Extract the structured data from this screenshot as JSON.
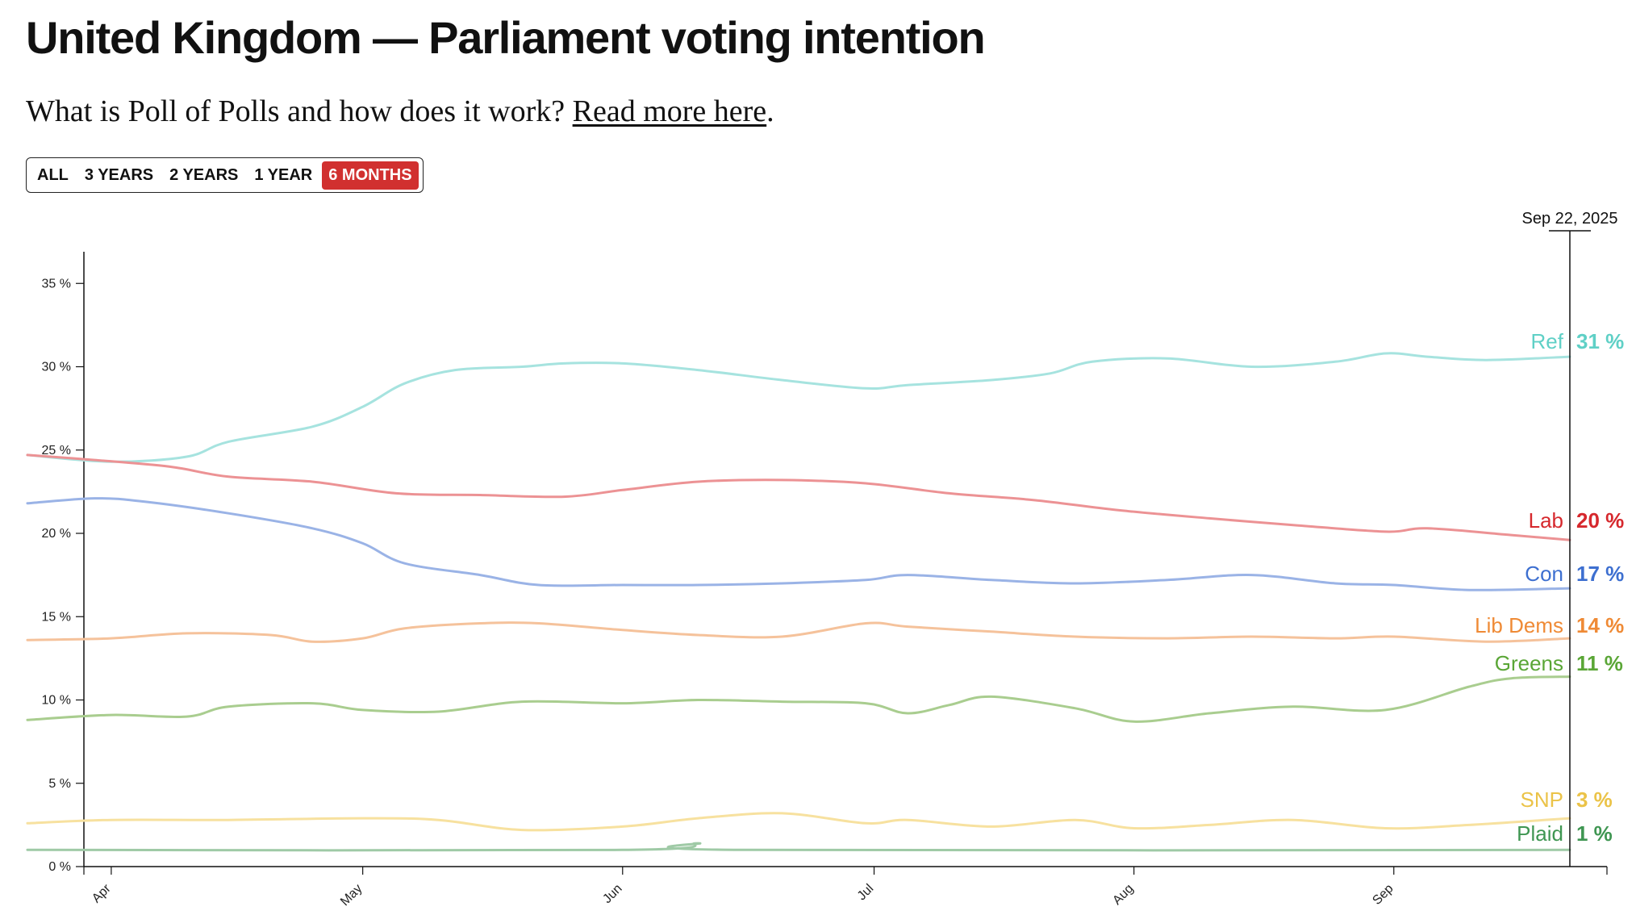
{
  "header": {
    "title": "United Kingdom — Parliament voting intention",
    "subtitle_prefix": "What is Poll of Polls and how does it work? ",
    "subtitle_link": "Read more here",
    "subtitle_suffix": "."
  },
  "range_buttons": [
    {
      "label": "ALL",
      "active": false
    },
    {
      "label": "3 YEARS",
      "active": false
    },
    {
      "label": "2 YEARS",
      "active": false
    },
    {
      "label": "1 YEAR",
      "active": false
    },
    {
      "label": "6 MONTHS",
      "active": true
    }
  ],
  "chart_data": {
    "type": "line",
    "date_label": "Sep 22, 2025",
    "x_start": "2025-03-22",
    "x_end": "2025-09-22",
    "month_ticks": [
      {
        "label": "Apr",
        "date": "2025-04-01"
      },
      {
        "label": "May",
        "date": "2025-05-01"
      },
      {
        "label": "Jun",
        "date": "2025-06-01"
      },
      {
        "label": "Jul",
        "date": "2025-07-01"
      },
      {
        "label": "Aug",
        "date": "2025-08-01"
      },
      {
        "label": "Sep",
        "date": "2025-09-01"
      }
    ],
    "y_ticks": [
      "0 %",
      "5 %",
      "10 %",
      "15 %",
      "20 %",
      "25 %",
      "30 %",
      "35 %"
    ],
    "ylim": [
      0,
      37
    ],
    "series": [
      {
        "name": "Ref",
        "value_label": "31 %",
        "color": "#a6e3df",
        "label_color": "#5fd0c6",
        "points": [
          [
            "2025-03-22",
            24.7
          ],
          [
            "2025-04-01",
            24.3
          ],
          [
            "2025-04-10",
            24.6
          ],
          [
            "2025-04-15",
            25.5
          ],
          [
            "2025-04-25",
            26.4
          ],
          [
            "2025-05-01",
            27.6
          ],
          [
            "2025-05-06",
            29.0
          ],
          [
            "2025-05-12",
            29.8
          ],
          [
            "2025-05-20",
            30.0
          ],
          [
            "2025-05-25",
            30.2
          ],
          [
            "2025-06-01",
            30.2
          ],
          [
            "2025-06-10",
            29.8
          ],
          [
            "2025-06-20",
            29.2
          ],
          [
            "2025-06-30",
            28.7
          ],
          [
            "2025-07-05",
            28.9
          ],
          [
            "2025-07-15",
            29.2
          ],
          [
            "2025-07-22",
            29.6
          ],
          [
            "2025-07-27",
            30.3
          ],
          [
            "2025-08-05",
            30.5
          ],
          [
            "2025-08-15",
            30.0
          ],
          [
            "2025-08-25",
            30.3
          ],
          [
            "2025-08-31",
            30.8
          ],
          [
            "2025-09-05",
            30.6
          ],
          [
            "2025-09-12",
            30.4
          ],
          [
            "2025-09-22",
            30.6
          ]
        ]
      },
      {
        "name": "Lab",
        "value_label": "20 %",
        "color": "#ec9294",
        "label_color": "#d6282d",
        "points": [
          [
            "2025-03-22",
            24.7
          ],
          [
            "2025-03-30",
            24.4
          ],
          [
            "2025-04-08",
            24.0
          ],
          [
            "2025-04-15",
            23.4
          ],
          [
            "2025-04-25",
            23.1
          ],
          [
            "2025-05-05",
            22.4
          ],
          [
            "2025-05-15",
            22.3
          ],
          [
            "2025-05-25",
            22.2
          ],
          [
            "2025-06-01",
            22.6
          ],
          [
            "2025-06-10",
            23.1
          ],
          [
            "2025-06-20",
            23.2
          ],
          [
            "2025-06-30",
            23.0
          ],
          [
            "2025-07-10",
            22.4
          ],
          [
            "2025-07-20",
            22.0
          ],
          [
            "2025-07-30",
            21.4
          ],
          [
            "2025-08-10",
            20.9
          ],
          [
            "2025-08-20",
            20.5
          ],
          [
            "2025-08-31",
            20.1
          ],
          [
            "2025-09-05",
            20.3
          ],
          [
            "2025-09-15",
            19.9
          ],
          [
            "2025-09-22",
            19.6
          ]
        ]
      },
      {
        "name": "Con",
        "value_label": "17 %",
        "color": "#9ab3e6",
        "label_color": "#3d6fd0",
        "points": [
          [
            "2025-03-22",
            21.8
          ],
          [
            "2025-03-30",
            22.1
          ],
          [
            "2025-04-05",
            21.9
          ],
          [
            "2025-04-15",
            21.2
          ],
          [
            "2025-04-25",
            20.3
          ],
          [
            "2025-05-01",
            19.4
          ],
          [
            "2025-05-06",
            18.2
          ],
          [
            "2025-05-15",
            17.5
          ],
          [
            "2025-05-22",
            16.9
          ],
          [
            "2025-06-01",
            16.9
          ],
          [
            "2025-06-10",
            16.9
          ],
          [
            "2025-06-20",
            17.0
          ],
          [
            "2025-06-30",
            17.2
          ],
          [
            "2025-07-05",
            17.5
          ],
          [
            "2025-07-15",
            17.2
          ],
          [
            "2025-07-25",
            17.0
          ],
          [
            "2025-08-05",
            17.2
          ],
          [
            "2025-08-15",
            17.5
          ],
          [
            "2025-08-25",
            17.0
          ],
          [
            "2025-09-01",
            16.9
          ],
          [
            "2025-09-10",
            16.6
          ],
          [
            "2025-09-22",
            16.7
          ]
        ]
      },
      {
        "name": "Lib Dems",
        "value_label": "14 %",
        "color": "#f5c29b",
        "label_color": "#ef8a35",
        "points": [
          [
            "2025-03-22",
            13.6
          ],
          [
            "2025-04-01",
            13.7
          ],
          [
            "2025-04-10",
            14.0
          ],
          [
            "2025-04-20",
            13.9
          ],
          [
            "2025-04-25",
            13.5
          ],
          [
            "2025-05-01",
            13.7
          ],
          [
            "2025-05-06",
            14.3
          ],
          [
            "2025-05-15",
            14.6
          ],
          [
            "2025-05-22",
            14.6
          ],
          [
            "2025-06-01",
            14.2
          ],
          [
            "2025-06-10",
            13.9
          ],
          [
            "2025-06-20",
            13.8
          ],
          [
            "2025-06-30",
            14.6
          ],
          [
            "2025-07-05",
            14.4
          ],
          [
            "2025-07-15",
            14.1
          ],
          [
            "2025-07-25",
            13.8
          ],
          [
            "2025-08-05",
            13.7
          ],
          [
            "2025-08-15",
            13.8
          ],
          [
            "2025-08-25",
            13.7
          ],
          [
            "2025-09-01",
            13.8
          ],
          [
            "2025-09-12",
            13.5
          ],
          [
            "2025-09-22",
            13.7
          ]
        ]
      },
      {
        "name": "Greens",
        "value_label": "11 %",
        "color": "#a9cd8f",
        "label_color": "#5aa636",
        "points": [
          [
            "2025-03-22",
            8.8
          ],
          [
            "2025-04-01",
            9.1
          ],
          [
            "2025-04-10",
            9.0
          ],
          [
            "2025-04-15",
            9.6
          ],
          [
            "2025-04-25",
            9.8
          ],
          [
            "2025-05-01",
            9.4
          ],
          [
            "2025-05-10",
            9.3
          ],
          [
            "2025-05-20",
            9.9
          ],
          [
            "2025-06-01",
            9.8
          ],
          [
            "2025-06-10",
            10.0
          ],
          [
            "2025-06-20",
            9.9
          ],
          [
            "2025-06-30",
            9.8
          ],
          [
            "2025-07-05",
            9.2
          ],
          [
            "2025-07-10",
            9.7
          ],
          [
            "2025-07-15",
            10.2
          ],
          [
            "2025-07-25",
            9.5
          ],
          [
            "2025-08-01",
            8.7
          ],
          [
            "2025-08-10",
            9.2
          ],
          [
            "2025-08-20",
            9.6
          ],
          [
            "2025-08-31",
            9.4
          ],
          [
            "2025-09-10",
            10.8
          ],
          [
            "2025-09-15",
            11.3
          ],
          [
            "2025-09-22",
            11.4
          ]
        ]
      },
      {
        "name": "SNP",
        "value_label": "3 %",
        "color": "#f7e19f",
        "label_color": "#ebc348",
        "points": [
          [
            "2025-03-22",
            2.6
          ],
          [
            "2025-04-01",
            2.8
          ],
          [
            "2025-04-15",
            2.8
          ],
          [
            "2025-05-01",
            2.9
          ],
          [
            "2025-05-10",
            2.8
          ],
          [
            "2025-05-20",
            2.2
          ],
          [
            "2025-06-01",
            2.4
          ],
          [
            "2025-06-10",
            2.9
          ],
          [
            "2025-06-20",
            3.2
          ],
          [
            "2025-06-30",
            2.6
          ],
          [
            "2025-07-05",
            2.8
          ],
          [
            "2025-07-15",
            2.4
          ],
          [
            "2025-07-25",
            2.8
          ],
          [
            "2025-08-01",
            2.3
          ],
          [
            "2025-08-10",
            2.5
          ],
          [
            "2025-08-20",
            2.8
          ],
          [
            "2025-08-31",
            2.3
          ],
          [
            "2025-09-10",
            2.5
          ],
          [
            "2025-09-22",
            2.9
          ]
        ]
      },
      {
        "name": "Plaid",
        "value_label": "1 %",
        "color": "#9fcaa6",
        "label_color": "#3f9652",
        "points": [
          [
            "2025-03-22",
            1.0
          ],
          [
            "2025-06-01",
            1.0
          ],
          [
            "2025-06-10",
            1.4
          ],
          [
            "2025-06-15",
            1.0
          ],
          [
            "2025-09-22",
            1.0
          ]
        ]
      }
    ]
  }
}
